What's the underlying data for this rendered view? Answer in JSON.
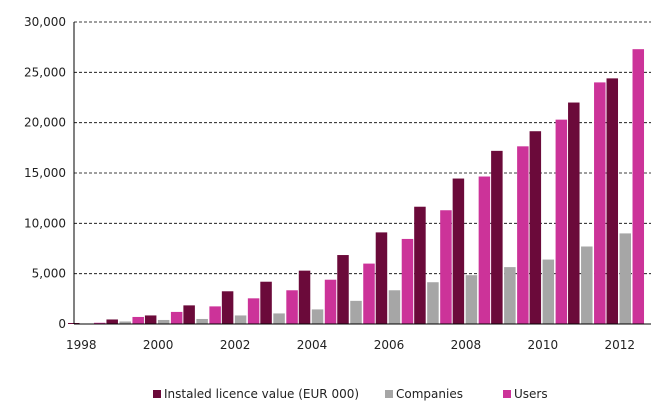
{
  "chart_data": {
    "type": "bar",
    "categories": [
      "1998",
      "1999",
      "2000",
      "2001",
      "2002",
      "2003",
      "2004",
      "2005",
      "2006",
      "2007",
      "2008",
      "2009",
      "2010",
      "2011",
      "2012"
    ],
    "x_tick_labels": [
      "1998",
      "2000",
      "2002",
      "2004",
      "2006",
      "2008",
      "2010",
      "2012"
    ],
    "y_tick_labels": [
      "0",
      "5,000",
      "10,000",
      "15,000",
      "20,000",
      "25,000",
      "30,000"
    ],
    "ylim": [
      0,
      30000
    ],
    "y_ticks": [
      0,
      5000,
      10000,
      15000,
      20000,
      25000,
      30000
    ],
    "grid": "horizontal dashed",
    "legend_placement": "bottom",
    "series": [
      {
        "name": "Instaled licence value (EUR 000)",
        "color": "#6b0a3a",
        "values": [
          100,
          450,
          850,
          1850,
          3250,
          4200,
          5300,
          6850,
          9100,
          11650,
          14450,
          17200,
          19150,
          22000,
          24400
        ]
      },
      {
        "name": "Companies",
        "color": "#a6a6a6",
        "values": [
          30,
          250,
          400,
          500,
          850,
          1050,
          1450,
          2300,
          3350,
          4150,
          4850,
          5650,
          6400,
          7700,
          9000
        ]
      },
      {
        "name": "Users",
        "color": "#cc3399",
        "values": [
          120,
          700,
          1200,
          1750,
          2550,
          3350,
          4400,
          6000,
          8450,
          11300,
          14650,
          17650,
          20300,
          24000,
          27300
        ]
      }
    ]
  }
}
